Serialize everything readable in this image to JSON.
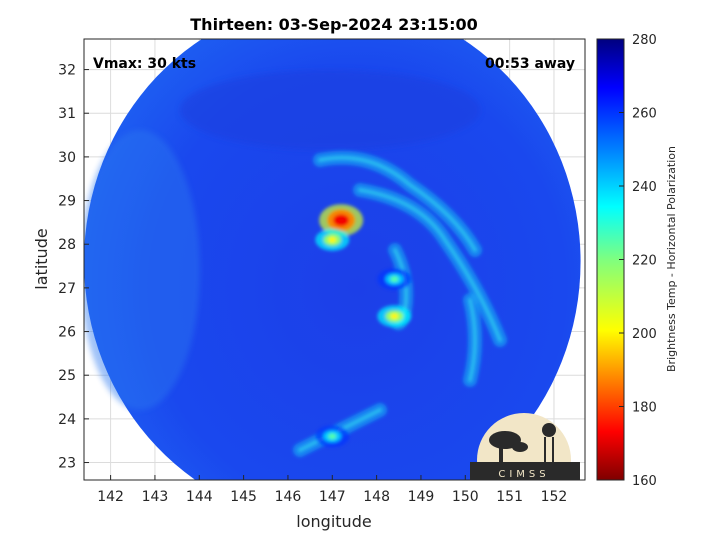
{
  "chart_data": {
    "type": "heatmap",
    "title": "Thirteen: 03-Sep-2024 23:15:00",
    "xlabel": "longitude",
    "ylabel": "latitude",
    "xlim": [
      141.4,
      152.7
    ],
    "ylim": [
      22.6,
      32.7
    ],
    "x_ticks": [
      142,
      143,
      144,
      145,
      146,
      147,
      148,
      149,
      150,
      151,
      152
    ],
    "y_ticks": [
      23,
      24,
      25,
      26,
      27,
      28,
      29,
      30,
      31,
      32
    ],
    "grid": true,
    "annotations": {
      "vmax": "Vmax: 30 kts",
      "time_offset": "00:53 away"
    },
    "colorbar": {
      "label": "Brightness Temp - Horizontal Polarization",
      "range": [
        160,
        280
      ],
      "ticks": [
        160,
        180,
        200,
        220,
        240,
        260,
        280
      ],
      "colormap": "jet"
    },
    "swath": {
      "center_lon": 147.0,
      "center_lat": 27.6,
      "radius_deg": 5.6
    },
    "features": [
      {
        "name": "eye-core",
        "lon": 147.2,
        "lat": 28.55,
        "value": 172
      },
      {
        "name": "eye-wall-south",
        "lon": 147.0,
        "lat": 28.1,
        "value": 200
      },
      {
        "name": "rainband-core",
        "lon": 148.4,
        "lat": 26.35,
        "value": 200
      },
      {
        "name": "rainband-mid",
        "lon": 148.4,
        "lat": 27.2,
        "value": 225
      },
      {
        "name": "southern-band",
        "lon": 147.0,
        "lat": 23.6,
        "value": 225
      }
    ]
  },
  "logo": {
    "text": "CIMSS"
  },
  "colors": {
    "background_field": "#1a3de6",
    "outside": "#ffffff",
    "grid": "#dcdcdc"
  }
}
